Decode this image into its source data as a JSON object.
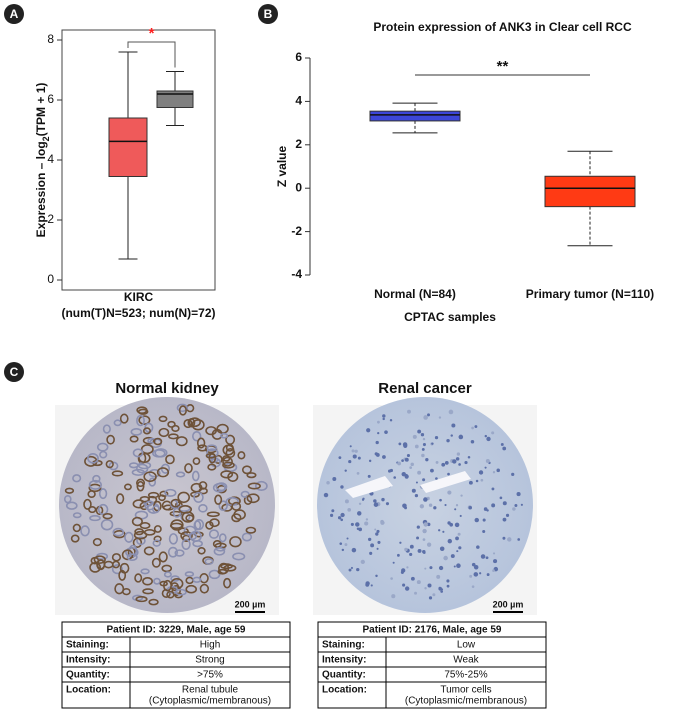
{
  "panel_labels": [
    "A",
    "B",
    "C"
  ],
  "chart_data": [
    {
      "type": "box",
      "ylabel": "Expression – log",
      "ylabel_sub": "2",
      "ylabel_end": "(TPM + 1)",
      "xlabel": [
        "KIRC",
        "(num(T)N=523; num(N)=72)"
      ],
      "ylim": [
        0,
        8
      ],
      "yticks": [
        0,
        2,
        4,
        6,
        8
      ],
      "annotation": "*",
      "annotation_color": "#ff2020",
      "series": [
        {
          "color": "#ef5a5a",
          "low": 0.7,
          "q1": 3.45,
          "median": 4.62,
          "q3": 5.4,
          "high": 7.6
        },
        {
          "color": "#808080",
          "low": 5.15,
          "q1": 5.75,
          "median": 6.2,
          "q3": 6.3,
          "high": 6.95
        }
      ]
    },
    {
      "type": "box",
      "title": "Protein expression of ANK3 in Clear cell RCC",
      "ylabel": "Z value",
      "xlabel": [
        "CPTAC samples"
      ],
      "categories": [
        "Normal (N=84)",
        "Primary tumor (N=110)"
      ],
      "ylim": [
        -4,
        6
      ],
      "yticks": [
        -4,
        -2,
        0,
        2,
        4,
        6
      ],
      "annotation": "**",
      "annotation_color": "#111111",
      "series": [
        {
          "color": "#3c46d8",
          "low": 2.55,
          "q1": 3.1,
          "median": 3.38,
          "q3": 3.55,
          "high": 3.92
        },
        {
          "color": "#ff3a14",
          "low": -2.65,
          "q1": -0.85,
          "median": 0.0,
          "q3": 0.55,
          "high": 1.7
        }
      ]
    }
  ],
  "images": [
    {
      "title": "Normal kidney",
      "scale": "200 µm"
    },
    {
      "title": "Renal cancer",
      "scale": "200 µm"
    }
  ],
  "tables": [
    {
      "title": "Patient ID: 3229, Male, age 59",
      "rows": [
        [
          "Staining:",
          [
            "High"
          ]
        ],
        [
          "Intensity:",
          [
            "Strong"
          ]
        ],
        [
          "Quantity:",
          [
            ">75%"
          ]
        ],
        [
          "Location:",
          [
            "Renal tubule",
            "(Cytoplasmic/membranous)"
          ]
        ]
      ]
    },
    {
      "title": "Patient ID: 2176, Male, age 59",
      "rows": [
        [
          "Staining:",
          [
            "Low"
          ]
        ],
        [
          "Intensity:",
          [
            "Weak"
          ]
        ],
        [
          "Quantity:",
          [
            "75%-25%"
          ]
        ],
        [
          "Location:",
          [
            "Tumor cells",
            "(Cytoplasmic/membranous)"
          ]
        ]
      ]
    }
  ]
}
